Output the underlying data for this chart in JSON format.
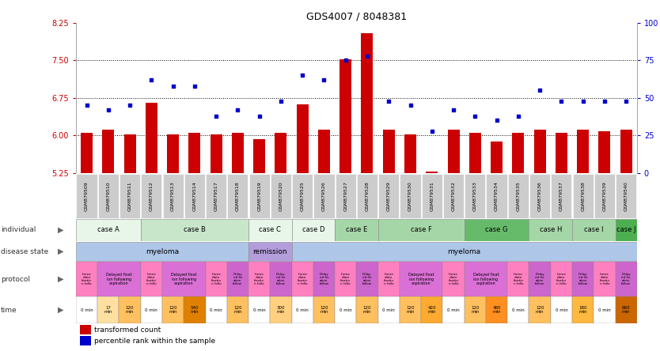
{
  "title": "GDS4007 / 8048381",
  "samples": [
    "GSM879509",
    "GSM879510",
    "GSM879511",
    "GSM879512",
    "GSM879513",
    "GSM879514",
    "GSM879517",
    "GSM879518",
    "GSM879519",
    "GSM879520",
    "GSM879525",
    "GSM879526",
    "GSM879527",
    "GSM879528",
    "GSM879529",
    "GSM879530",
    "GSM879531",
    "GSM879532",
    "GSM879533",
    "GSM879534",
    "GSM879535",
    "GSM879536",
    "GSM879537",
    "GSM879538",
    "GSM879539",
    "GSM879540"
  ],
  "bar_values": [
    6.05,
    6.12,
    6.02,
    6.65,
    6.02,
    6.05,
    6.02,
    6.05,
    5.92,
    6.05,
    6.62,
    6.12,
    7.52,
    8.05,
    6.12,
    6.02,
    5.28,
    6.12,
    6.05,
    5.88,
    6.05,
    6.12,
    6.05,
    6.12,
    6.08,
    6.12
  ],
  "dot_values": [
    45,
    42,
    45,
    62,
    58,
    58,
    38,
    42,
    38,
    48,
    65,
    62,
    75,
    78,
    48,
    45,
    28,
    42,
    38,
    35,
    38,
    55,
    48,
    48,
    48,
    48
  ],
  "y_min": 5.25,
  "y_max": 8.25,
  "y_ticks_left": [
    5.25,
    6.0,
    6.75,
    7.5,
    8.25
  ],
  "y_ticks_right": [
    0,
    25,
    50,
    75,
    100
  ],
  "individual_cases": [
    {
      "label": "case A",
      "start": 0,
      "end": 3,
      "color": "#e8f5e9"
    },
    {
      "label": "case B",
      "start": 3,
      "end": 8,
      "color": "#c8e6c9"
    },
    {
      "label": "case C",
      "start": 8,
      "end": 10,
      "color": "#e8f5e9"
    },
    {
      "label": "case D",
      "start": 10,
      "end": 12,
      "color": "#e8f5e9"
    },
    {
      "label": "case E",
      "start": 12,
      "end": 14,
      "color": "#a5d6a7"
    },
    {
      "label": "case F",
      "start": 14,
      "end": 18,
      "color": "#a5d6a7"
    },
    {
      "label": "case G",
      "start": 18,
      "end": 21,
      "color": "#66bb6a"
    },
    {
      "label": "case H",
      "start": 21,
      "end": 23,
      "color": "#a5d6a7"
    },
    {
      "label": "case I",
      "start": 23,
      "end": 25,
      "color": "#a5d6a7"
    },
    {
      "label": "case J",
      "start": 25,
      "end": 26,
      "color": "#4caf50"
    }
  ],
  "disease_state": [
    {
      "label": "myeloma",
      "start": 0,
      "end": 8,
      "color": "#aec6e8"
    },
    {
      "label": "remission",
      "start": 8,
      "end": 10,
      "color": "#b39ddb"
    },
    {
      "label": "myeloma",
      "start": 10,
      "end": 26,
      "color": "#aec6e8"
    }
  ],
  "protocol_blocks": [
    {
      "text": "Imme\ndiate\nfixatio\nn follo",
      "start": 0,
      "end": 1,
      "color": "#ff80c0"
    },
    {
      "text": "Delayed fixat\nion following\naspiration",
      "start": 1,
      "end": 3,
      "color": "#da70d6"
    },
    {
      "text": "Imme\ndiate\nfixatio\nn follo",
      "start": 3,
      "end": 4,
      "color": "#ff80c0"
    },
    {
      "text": "Delayed fixat\nion following\naspiration",
      "start": 4,
      "end": 6,
      "color": "#da70d6"
    },
    {
      "text": "Imme\ndiate\nfixatio\nn follo",
      "start": 6,
      "end": 7,
      "color": "#ff80c0"
    },
    {
      "text": "Delay\ned fix\nation\nfollow",
      "start": 7,
      "end": 8,
      "color": "#cc66cc"
    },
    {
      "text": "Imme\ndiate\nfixatio\nn follo",
      "start": 8,
      "end": 9,
      "color": "#ff80c0"
    },
    {
      "text": "Delay\ned fix\nation\nfollow",
      "start": 9,
      "end": 10,
      "color": "#cc66cc"
    },
    {
      "text": "Imme\ndiate\nfixatio\nn follo",
      "start": 10,
      "end": 11,
      "color": "#ff80c0"
    },
    {
      "text": "Delay\ned fix\nation\nfollow",
      "start": 11,
      "end": 12,
      "color": "#cc66cc"
    },
    {
      "text": "Imme\ndiate\nfixatio\nn follo",
      "start": 12,
      "end": 13,
      "color": "#ff80c0"
    },
    {
      "text": "Delay\ned fix\nation\nfollow",
      "start": 13,
      "end": 14,
      "color": "#cc66cc"
    },
    {
      "text": "Imme\ndiate\nfixatio\nn follo",
      "start": 14,
      "end": 15,
      "color": "#ff80c0"
    },
    {
      "text": "Delayed fixat\nion following\naspiration",
      "start": 15,
      "end": 17,
      "color": "#da70d6"
    },
    {
      "text": "Imme\ndiate\nfixatio\nn follo",
      "start": 17,
      "end": 18,
      "color": "#ff80c0"
    },
    {
      "text": "Delayed fixat\nion following\naspiration",
      "start": 18,
      "end": 20,
      "color": "#da70d6"
    },
    {
      "text": "Imme\ndiate\nfixatio\nn follo",
      "start": 20,
      "end": 21,
      "color": "#ff80c0"
    },
    {
      "text": "Delay\ned fix\nation\nfollow",
      "start": 21,
      "end": 22,
      "color": "#cc66cc"
    },
    {
      "text": "Imme\ndiate\nfixatio\nn follo",
      "start": 22,
      "end": 23,
      "color": "#ff80c0"
    },
    {
      "text": "Delay\ned fix\nation\nfollow",
      "start": 23,
      "end": 24,
      "color": "#cc66cc"
    },
    {
      "text": "Imme\ndiate\nfixatio\nn follo",
      "start": 24,
      "end": 25,
      "color": "#ff80c0"
    },
    {
      "text": "Delay\ned fix\nation\nfollow",
      "start": 25,
      "end": 26,
      "color": "#cc66cc"
    }
  ],
  "time_vals": [
    "0 min",
    "17\nmin",
    "120\nmin",
    "0 min",
    "120\nmin",
    "540\nmin",
    "0 min",
    "120\nmin",
    "0 min",
    "300\nmin",
    "0 min",
    "120\nmin",
    "0 min",
    "120\nmin",
    "0 min",
    "120\nmin",
    "420\nmin",
    "0 min",
    "120\nmin",
    "480\nmin",
    "0 min",
    "120\nmin",
    "0 min",
    "180\nmin",
    "0 min",
    "660\nmin"
  ],
  "time_colors": [
    "#ffffff",
    "#ffe0a0",
    "#ffc060",
    "#ffffff",
    "#ffc060",
    "#e08000",
    "#ffffff",
    "#ffc060",
    "#ffffff",
    "#ffd080",
    "#ffffff",
    "#ffc060",
    "#ffffff",
    "#ffc060",
    "#ffffff",
    "#ffc060",
    "#ffaa30",
    "#ffffff",
    "#ffc060",
    "#ff9020",
    "#ffffff",
    "#ffc060",
    "#ffffff",
    "#ffb840",
    "#ffffff",
    "#cc6600"
  ],
  "bar_color": "#cc0000",
  "dot_color": "#0000cc",
  "tick_color_left": "#cc0000",
  "tick_color_right": "#0000cc",
  "sample_box_color": "#cccccc",
  "row_label_color": "#333333",
  "background_color": "#ffffff",
  "row_labels": [
    "individual",
    "disease state",
    "protocol",
    "time"
  ],
  "legend_bar_label": "transformed count",
  "legend_dot_label": "percentile rank within the sample"
}
